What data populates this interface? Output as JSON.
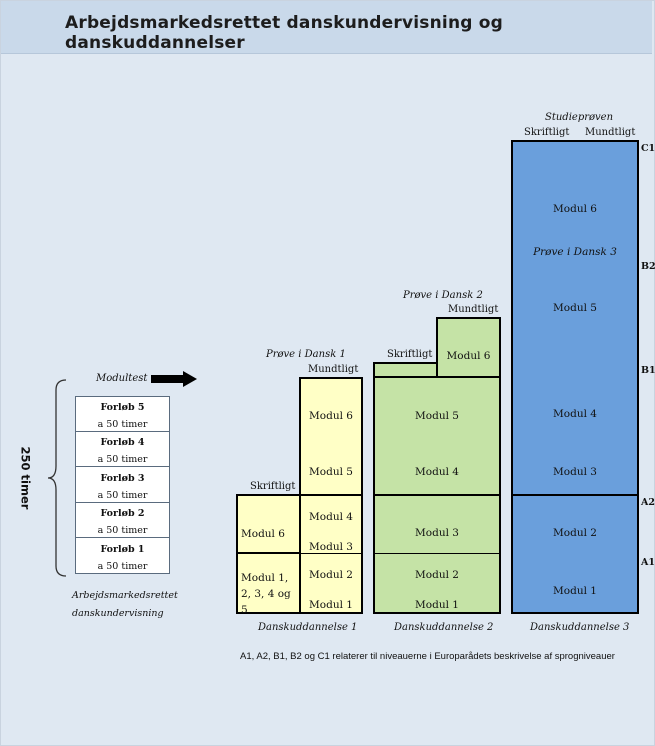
{
  "title": "Arbejdsmarkedsrettet danskundervisning og danskuddannelser",
  "left": {
    "hours_label": "250 timer",
    "modultest_label": "Modultest",
    "courses": [
      {
        "name": "Forløb 5",
        "hours": "a 50 timer"
      },
      {
        "name": "Forløb 4",
        "hours": "a 50 timer"
      },
      {
        "name": "Forløb 3",
        "hours": "a 50 timer"
      },
      {
        "name": "Forløb 2",
        "hours": "a 50 timer"
      },
      {
        "name": "Forløb 1",
        "hours": "a 50 timer"
      }
    ],
    "caption_line1": "Arbejdsmarkedsrettet",
    "caption_line2": "danskundervisning"
  },
  "du1": {
    "exam_label": "Prøve i Dansk 1",
    "oral_label": "Mundtligt",
    "written_label": "Skriftligt",
    "written_modules": [
      "Modul 6",
      "Modul 1, 2, 3, 4 og 5"
    ],
    "modules": [
      "Modul 6",
      "Modul 5",
      "Modul 4",
      "Modul 3",
      "Modul 2",
      "Modul 1"
    ],
    "caption": "Danskuddannelse 1"
  },
  "du2": {
    "exam_label": "Prøve i Dansk 2",
    "oral_label": "Mundtligt",
    "written_label": "Skriftligt",
    "modules": [
      "Modul 6",
      "Modul 5",
      "Modul 4",
      "Modul 3",
      "Modul 2",
      "Modul 1"
    ],
    "caption": "Danskuddannelse 2"
  },
  "du3": {
    "exam_top_label": "Studieprøven",
    "written_label": "Skriftligt",
    "oral_label": "Mundtligt",
    "exam_mid_label": "Prøve i Dansk 3",
    "modules": [
      "Modul 6",
      "Modul 5",
      "Modul 4",
      "Modul 3",
      "Modul 2",
      "Modul 1"
    ],
    "caption": "Danskuddannelse 3"
  },
  "levels": [
    "C1",
    "B2",
    "B1",
    "A2",
    "A1"
  ],
  "footnote": "A1, A2, B1, B2 og C1 relaterer til niveauerne i Europarådets beskrivelse af sprogniveauer",
  "colors": {
    "background": "#dfe8f2",
    "header": "#c9d9ea",
    "du1_fill": "#ffffc6",
    "du2_fill": "#c5e3a6",
    "du3_fill": "#6a9fdc"
  },
  "icons": [
    "curly-brace-icon",
    "right-arrow-icon"
  ]
}
